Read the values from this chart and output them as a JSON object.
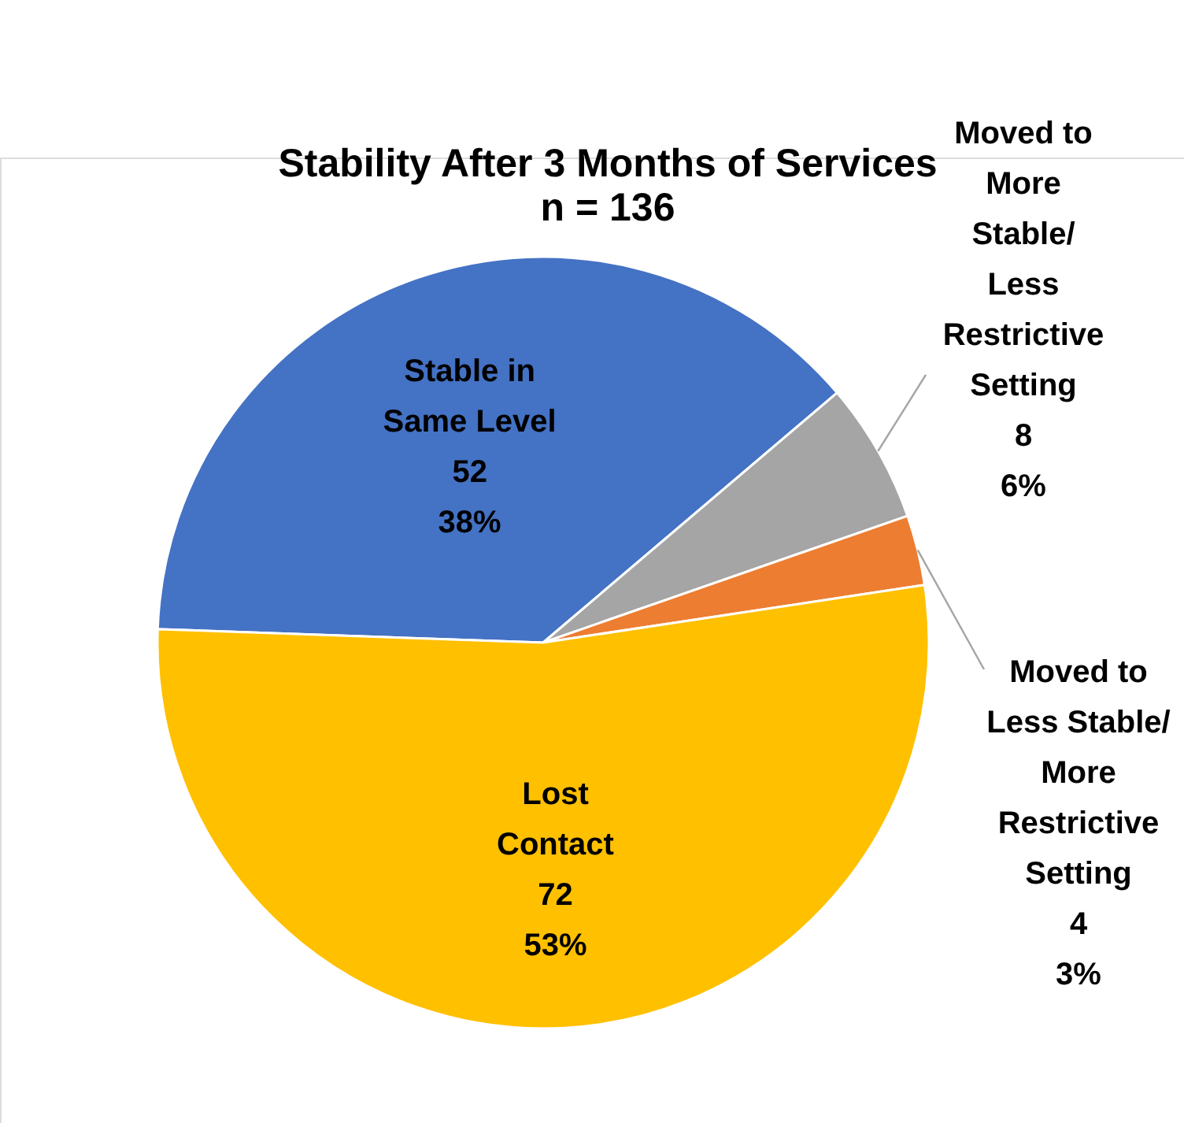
{
  "chart_data": {
    "type": "pie",
    "title": "Stability After 3 Months of Services",
    "subtitle": "n = 136",
    "categories": [
      "Stable in Same Level",
      "Moved to More Stable/ Less Restrictive Setting",
      "Moved to Less Stable/ More Restrictive Setting",
      "Lost Contact"
    ],
    "values": [
      52,
      8,
      4,
      72
    ],
    "colors": [
      "#4472c4",
      "#a5a5a5",
      "#ed7d31",
      "#ffc000"
    ],
    "value_labels": [
      "52 38%",
      "8 6%",
      "4 3%",
      "72 53%"
    ],
    "legend": false
  }
}
